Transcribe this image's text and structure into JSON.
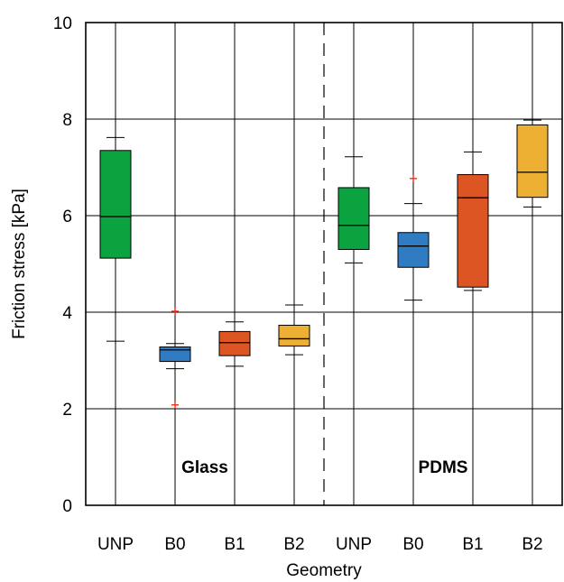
{
  "chart_data": {
    "type": "box",
    "xlabel": "Geometry",
    "ylabel": "Friction stress [kPa]",
    "ylim": [
      0,
      10
    ],
    "yticks": [
      0,
      2,
      4,
      6,
      8,
      10
    ],
    "grid": true,
    "categories": [
      "UNP",
      "B0",
      "B1",
      "B2",
      "UNP",
      "B0",
      "B1",
      "B2"
    ],
    "groups": [
      {
        "label": "Glass",
        "categories": [
          0,
          1,
          2,
          3
        ]
      },
      {
        "label": "PDMS",
        "categories": [
          4,
          5,
          6,
          7
        ]
      }
    ],
    "boxes": [
      {
        "category": "UNP",
        "group": "Glass",
        "whisker_low": 3.4,
        "q1": 5.12,
        "median": 5.98,
        "q3": 7.35,
        "whisker_high": 7.62,
        "outliers": [],
        "color": "#0aa33f"
      },
      {
        "category": "B0",
        "group": "Glass",
        "whisker_low": 2.83,
        "q1": 2.98,
        "median": 3.22,
        "q3": 3.28,
        "whisker_high": 3.35,
        "outliers": [
          4.02,
          2.08
        ],
        "color": "#2f7cc2"
      },
      {
        "category": "B1",
        "group": "Glass",
        "whisker_low": 2.88,
        "q1": 3.1,
        "median": 3.37,
        "q3": 3.6,
        "whisker_high": 3.8,
        "outliers": [],
        "color": "#dc5522"
      },
      {
        "category": "B2",
        "group": "Glass",
        "whisker_low": 3.12,
        "q1": 3.3,
        "median": 3.45,
        "q3": 3.73,
        "whisker_high": 4.15,
        "outliers": [],
        "color": "#edb033"
      },
      {
        "category": "UNP",
        "group": "PDMS",
        "whisker_low": 5.02,
        "q1": 5.3,
        "median": 5.8,
        "q3": 6.58,
        "whisker_high": 7.22,
        "outliers": [],
        "color": "#0aa33f"
      },
      {
        "category": "B0",
        "group": "PDMS",
        "whisker_low": 4.25,
        "q1": 4.93,
        "median": 5.37,
        "q3": 5.65,
        "whisker_high": 6.25,
        "outliers": [
          6.77
        ],
        "color": "#2f7cc2"
      },
      {
        "category": "B1",
        "group": "PDMS",
        "whisker_low": 4.45,
        "q1": 4.52,
        "median": 6.37,
        "q3": 6.85,
        "whisker_high": 7.32,
        "outliers": [],
        "color": "#dc5522"
      },
      {
        "category": "B2",
        "group": "PDMS",
        "whisker_low": 6.18,
        "q1": 6.38,
        "median": 6.9,
        "q3": 7.88,
        "whisker_high": 7.98,
        "outliers": [],
        "color": "#edb033"
      }
    ],
    "outlier_color": "#ff2a1a",
    "separator": "dashed line between Glass and PDMS"
  }
}
